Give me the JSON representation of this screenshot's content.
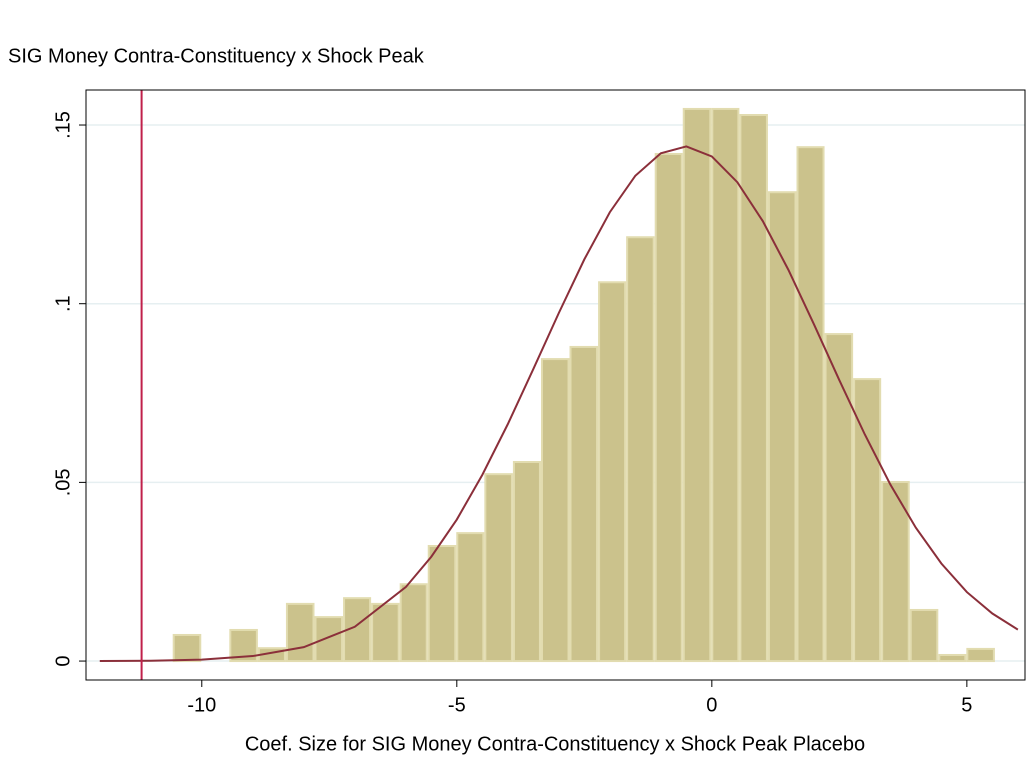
{
  "chart_data": {
    "type": "histogram",
    "title": "SIG Money Contra-Constituency x Shock Peak",
    "x_label": "Coef. Size for SIG Money Contra-Constituency x Shock Peak Placebo",
    "bins": [
      -10.57,
      -10.01,
      -9.46,
      -8.9,
      -8.35,
      -7.79,
      -7.23,
      -6.68,
      -6.12,
      -5.57,
      -5.01,
      -4.46,
      -3.9,
      -3.35,
      -2.79,
      -2.23,
      -1.68,
      -1.12,
      -0.57,
      -0.01,
      0.54,
      1.1,
      1.66,
      2.21,
      2.77,
      3.32,
      3.88,
      4.44,
      4.99,
      5.55
    ],
    "counts": [
      0.0073,
      0,
      0.0087,
      0.0036,
      0.016,
      0.0123,
      0.0176,
      0.016,
      0.0215,
      0.0322,
      0.0358,
      0.0523,
      0.0557,
      0.0845,
      0.0879,
      0.106,
      0.1186,
      0.1419,
      0.1545,
      0.1545,
      0.1528,
      0.1312,
      0.1438,
      0.0915,
      0.0789,
      0.0501,
      0.0143,
      0.0017,
      0.0034
    ],
    "color": "#cbc28c",
    "edge_color": "#e2dcb0",
    "curve": {
      "color": "#8b2f3a",
      "x": [
        -12,
        -11,
        -10,
        -9,
        -8,
        -7,
        -6,
        -5.5,
        -5,
        -4.5,
        -4,
        -3.5,
        -3,
        -2.5,
        -2,
        -1.5,
        -1,
        -0.5,
        0,
        0.5,
        1,
        1.5,
        2,
        2.5,
        3,
        3.5,
        4,
        4.5,
        5,
        5.5,
        6
      ],
      "y": [
        3e-05,
        0.0001,
        0.0004,
        0.0014,
        0.0039,
        0.0096,
        0.0207,
        0.0292,
        0.0396,
        0.0521,
        0.0663,
        0.0817,
        0.0974,
        0.1124,
        0.1256,
        0.1358,
        0.1421,
        0.144,
        0.1412,
        0.134,
        0.1231,
        0.1095,
        0.0943,
        0.0786,
        0.0634,
        0.0494,
        0.0373,
        0.0273,
        0.0193,
        0.0133,
        0.0088
      ]
    },
    "vline": {
      "x": -11.18,
      "color": "#c0204a"
    },
    "xlim": [
      -12.27,
      6.14
    ],
    "ylim": [
      -0.0053,
      0.1598
    ],
    "xticks": [
      -10,
      -5,
      0,
      5
    ],
    "yticks": [
      0,
      {
        "value": 0.05,
        "label": ".05"
      },
      {
        "value": 0.1,
        "label": ".1"
      },
      {
        "value": 0.15,
        "label": ".15"
      }
    ],
    "grid": true
  }
}
